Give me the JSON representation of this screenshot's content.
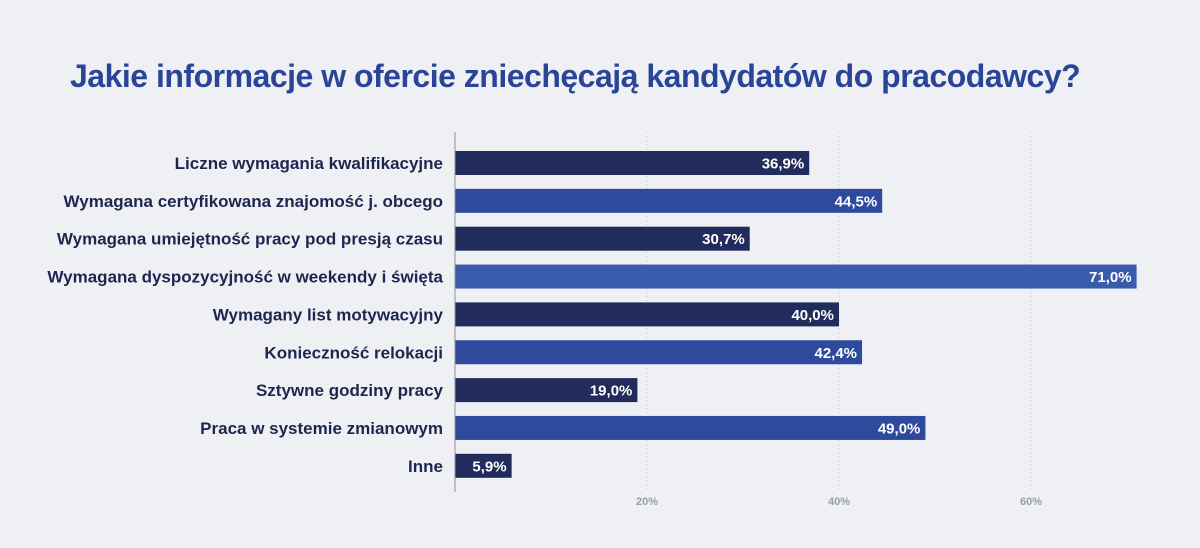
{
  "chart_data": {
    "type": "bar",
    "orientation": "horizontal",
    "title": "Jakie informacje w ofercie zniechęcają kandydatów do pracodawcy?",
    "xlabel": "",
    "ylabel": "",
    "xlim": [
      0,
      72
    ],
    "x_ticks": [
      20,
      40,
      60
    ],
    "x_tick_labels": [
      "20%",
      "40%",
      "60%"
    ],
    "grid": "vertical dotted",
    "categories": [
      "Liczne wymagania kwalifikacyjne",
      "Wymagana certyfikowana znajomość j. obcego",
      "Wymagana umiejętność pracy pod presją czasu",
      "Wymagana dyspozycyjność w weekendy i święta",
      "Wymagany list motywacyjny",
      "Konieczność relokacji",
      "Sztywne godziny pracy",
      "Praca w systemie zmianowym",
      "Inne"
    ],
    "values": [
      36.9,
      44.5,
      30.7,
      71.0,
      40.0,
      42.4,
      19.0,
      49.0,
      5.9
    ],
    "value_labels": [
      "36,9%",
      "44,5%",
      "30,7%",
      "71,0%",
      "40,0%",
      "42,4%",
      "19,0%",
      "49,0%",
      "5,9%"
    ],
    "bar_colors": [
      "#222c5c",
      "#2d4a9d",
      "#222c5c",
      "#3a5aab",
      "#222c5c",
      "#2d4a9d",
      "#222c5c",
      "#2d4a9d",
      "#222c5c"
    ],
    "label_color": "#1e2650",
    "value_label_color": "#ffffff",
    "tick_color": "#9a9da6"
  }
}
